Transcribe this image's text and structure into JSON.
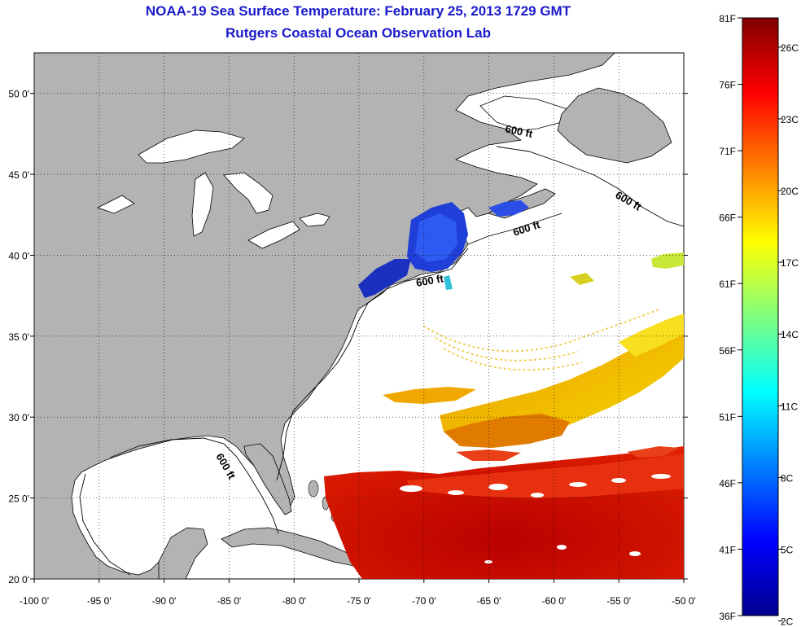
{
  "title": "NOAA-19 Sea Surface Temperature:  February 25, 2013 1729 GMT",
  "subtitle": "Rutgers Coastal Ocean Observation Lab",
  "map": {
    "lon_range": [
      -100,
      -50
    ],
    "lat_range": [
      20,
      52.5
    ],
    "lon_ticks": [
      "-100 0'",
      "-95 0'",
      "-90 0'",
      "-85 0'",
      "-80 0'",
      "-75 0'",
      "-70 0'",
      "-65 0'",
      "-60 0'",
      "-55 0'",
      "-50 0'"
    ],
    "lat_ticks": [
      "20 0'",
      "25 0'",
      "30 0'",
      "35 0'",
      "40 0'",
      "45 0'",
      "50 0'"
    ],
    "land_color": "#b3b3b3",
    "ocean_color": "#ffffff",
    "grid": "dotted",
    "contour_label": "600 ft"
  },
  "colorbar": {
    "placement": "right",
    "range_f": [
      36,
      81
    ],
    "fahrenheit_labels": [
      "81F",
      "76F",
      "71F",
      "66F",
      "61F",
      "56F",
      "51F",
      "46F",
      "41F",
      "36F"
    ],
    "celsius_labels": [
      "26C",
      "23C",
      "20C",
      "17C",
      "14C",
      "11C",
      "8C",
      "5C",
      "2C"
    ],
    "colormap": [
      "#00008f",
      "#0000ff",
      "#00ffff",
      "#ffff00",
      "#ff0000",
      "#800000"
    ]
  }
}
